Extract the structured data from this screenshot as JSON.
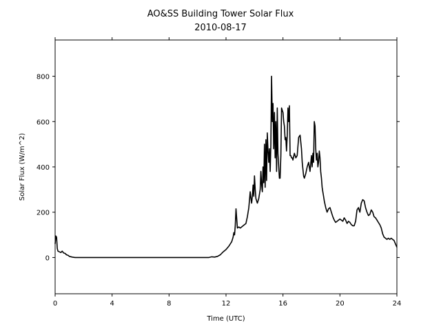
{
  "chart_data": {
    "type": "line",
    "title": "AO&SS Building Tower Solar Flux",
    "subtitle": "2010-08-17",
    "xlabel": "Time (UTC)",
    "ylabel": "Solar Flux (W/m^2)",
    "xlim": [
      0,
      24
    ],
    "ylim": [
      -160,
      960
    ],
    "xticks": [
      0,
      4,
      8,
      12,
      16,
      20,
      24
    ],
    "xtick_labels": [
      "0",
      "4",
      "8",
      "12",
      "16",
      "20",
      "24"
    ],
    "yticks": [
      0,
      200,
      400,
      600,
      800
    ],
    "ytick_labels": [
      "0",
      "200",
      "400",
      "600",
      "800"
    ],
    "grid": false,
    "line_color": "#000000",
    "series": [
      {
        "x": [
          0.0,
          0.05,
          0.1,
          0.15,
          0.2,
          0.3,
          0.4,
          0.5,
          0.6,
          0.7,
          0.8,
          0.9,
          1.0,
          1.2,
          1.4,
          1.6,
          1.8,
          2.0,
          4.0,
          6.0,
          8.0,
          10.0,
          10.8,
          11.0,
          11.2,
          11.4,
          11.6,
          11.8,
          12.0,
          12.2,
          12.4,
          12.5,
          12.55,
          12.6,
          12.65,
          12.7,
          12.8,
          12.9,
          13.0,
          13.2,
          13.4,
          13.5,
          13.6,
          13.7,
          13.75,
          13.8,
          13.85,
          13.9,
          13.95,
          14.0,
          14.05,
          14.1,
          14.2,
          14.3,
          14.4,
          14.45,
          14.5,
          14.55,
          14.6,
          14.65,
          14.7,
          14.75,
          14.8,
          14.85,
          14.9,
          14.95,
          15.0,
          15.05,
          15.1,
          15.15,
          15.2,
          15.25,
          15.3,
          15.35,
          15.4,
          15.45,
          15.5,
          15.55,
          15.6,
          15.65,
          15.7,
          15.75,
          15.8,
          15.85,
          15.9,
          15.95,
          16.0,
          16.05,
          16.1,
          16.15,
          16.2,
          16.25,
          16.3,
          16.35,
          16.4,
          16.45,
          16.5,
          16.55,
          16.6,
          16.65,
          16.7,
          16.8,
          16.9,
          17.0,
          17.1,
          17.2,
          17.3,
          17.35,
          17.4,
          17.45,
          17.5,
          17.6,
          17.7,
          17.8,
          17.9,
          18.0,
          18.05,
          18.1,
          18.15,
          18.2,
          18.25,
          18.3,
          18.35,
          18.4,
          18.45,
          18.5,
          18.55,
          18.6,
          18.65,
          18.7,
          18.75,
          18.8,
          18.85,
          18.9,
          19.0,
          19.1,
          19.2,
          19.3,
          19.4,
          19.5,
          19.6,
          19.7,
          19.8,
          19.9,
          20.0,
          20.1,
          20.2,
          20.3,
          20.4,
          20.5,
          20.6,
          20.7,
          20.8,
          20.9,
          21.0,
          21.1,
          21.2,
          21.3,
          21.4,
          21.5,
          21.6,
          21.7,
          21.8,
          21.9,
          22.0,
          22.1,
          22.2,
          22.3,
          22.4,
          22.5,
          22.6,
          22.7,
          22.8,
          22.9,
          23.0,
          23.1,
          23.2,
          23.3,
          23.4,
          23.5,
          23.6,
          23.7,
          23.8,
          23.9,
          24.0
        ],
        "y": [
          60,
          95,
          90,
          40,
          28,
          25,
          22,
          28,
          20,
          18,
          12,
          10,
          5,
          2,
          0,
          0,
          0,
          0,
          0,
          0,
          0,
          0,
          0,
          3,
          2,
          5,
          12,
          25,
          35,
          50,
          70,
          90,
          110,
          100,
          140,
          215,
          130,
          135,
          130,
          140,
          150,
          180,
          220,
          290,
          260,
          240,
          270,
          320,
          270,
          360,
          300,
          260,
          240,
          260,
          300,
          380,
          320,
          290,
          400,
          330,
          500,
          310,
          520,
          340,
          550,
          470,
          420,
          480,
          380,
          500,
          800,
          600,
          680,
          480,
          640,
          440,
          600,
          380,
          660,
          460,
          400,
          350,
          350,
          450,
          660,
          650,
          640,
          600,
          580,
          520,
          530,
          470,
          540,
          660,
          600,
          670,
          450,
          450,
          440,
          440,
          430,
          460,
          440,
          450,
          530,
          540,
          480,
          420,
          390,
          360,
          350,
          370,
          400,
          420,
          380,
          450,
          400,
          460,
          420,
          600,
          580,
          480,
          430,
          460,
          400,
          420,
          470,
          440,
          380,
          350,
          310,
          290,
          270,
          250,
          220,
          200,
          215,
          220,
          200,
          180,
          165,
          155,
          160,
          165,
          170,
          165,
          160,
          175,
          165,
          150,
          160,
          155,
          145,
          140,
          140,
          160,
          210,
          220,
          200,
          240,
          255,
          250,
          220,
          200,
          185,
          190,
          210,
          200,
          180,
          175,
          165,
          155,
          145,
          130,
          105,
          90,
          85,
          80,
          85,
          80,
          85,
          80,
          75,
          60,
          45
        ]
      }
    ]
  }
}
